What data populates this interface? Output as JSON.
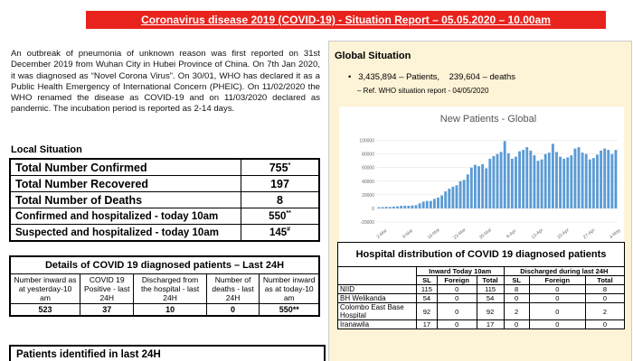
{
  "header": {
    "title": "Coronavirus disease 2019 (COVID-19) - Situation Report – 05.05.2020 – 10.00am"
  },
  "intro": "An outbreak of pneumonia of unknown reason was first reported on 31st December 2019 from Wuhan City in Hubei Province of China. On 7th Jan 2020, it was diagnosed as “Novel Corona Virus”. On 30/01, WHO has declared it as a Public Health Emergency of International Concern (PHEIC). On 11/02/2020 the WHO renamed the disease as COVID-19 and on 11/03/2020 declared as pandemic. The incubation period is reported as 2-14 days.",
  "local": {
    "heading": "Local Situation",
    "rows": [
      {
        "label": "Total Number Confirmed",
        "value": 755,
        "note": "*"
      },
      {
        "label": "Total Number Recovered",
        "value": 197
      },
      {
        "label": "Total Number of Deaths",
        "value": 8
      },
      {
        "label": "Confirmed and hospitalized - today 10am",
        "value": 550,
        "note": "**"
      },
      {
        "label": "Suspected and hospitalized - today 10am",
        "value": 145,
        "note": "#"
      }
    ]
  },
  "details": {
    "title": "Details of COVID 19 diagnosed patients – Last 24H",
    "headers": [
      "Number inward as at yesterday-10 am",
      "COVID 19 Positive - last 24H",
      "Discharged from the hospital - last 24H",
      "Number of deaths - last 24H",
      "Number inward as at today-10 am"
    ],
    "values": [
      523,
      37,
      10,
      0,
      550
    ],
    "last_note": "**"
  },
  "patients_heading": "Patients identified in last 24H",
  "global": {
    "heading": "Global Situation",
    "summary": "3,435,894 – Patients,    239,604 – deaths",
    "ref": "– Ref. WHO situation report - 04/05/2020"
  },
  "chart": {
    "type": "bar",
    "title": "New Patients - Global",
    "color": "#5b9bd5",
    "categories": [
      null,
      "2-Mar",
      null,
      null,
      null,
      null,
      null,
      null,
      "9-Mar",
      null,
      null,
      null,
      null,
      null,
      null,
      "16-Mar",
      null,
      null,
      null,
      null,
      null,
      null,
      "23-Mar",
      null,
      null,
      null,
      null,
      null,
      null,
      "30-Mar",
      null,
      null,
      null,
      null,
      null,
      null,
      "6-Apr",
      null,
      null,
      null,
      null,
      null,
      null,
      "13-Apr",
      null,
      null,
      null,
      null,
      null,
      null,
      "20-Apr",
      null,
      null,
      null,
      null,
      null,
      null,
      "27-Apr",
      null,
      null,
      null,
      null,
      null,
      null,
      "4-May"
    ],
    "values": [
      1800,
      1900,
      2300,
      2200,
      2700,
      3000,
      3700,
      4000,
      3900,
      4400,
      4700,
      7500,
      10000,
      11000,
      11000,
      14000,
      16000,
      19000,
      25000,
      29000,
      32000,
      34000,
      40000,
      42000,
      50000,
      60000,
      64000,
      62000,
      65000,
      59000,
      73000,
      77000,
      80000,
      83000,
      99000,
      81000,
      73000,
      76000,
      84000,
      86000,
      90000,
      85000,
      78000,
      70000,
      72000,
      80000,
      82000,
      95000,
      83000,
      76000,
      73000,
      75000,
      78000,
      88000,
      90000,
      82000,
      80000,
      72000,
      74000,
      79000,
      85000,
      88000,
      86000,
      80000,
      86000
    ],
    "ylim": [
      -20000,
      110000
    ],
    "yticks": [
      -20000,
      0,
      20000,
      40000,
      60000,
      80000,
      100000
    ],
    "grid": true
  },
  "hospital": {
    "title": "Hospital distribution of COVID 19 diagnosed patients",
    "groups": [
      "Inward Today 10am",
      "Discharged during last 24H"
    ],
    "subheaders": [
      "SL",
      "Foreign",
      "Total",
      "SL",
      "Foreign",
      "Total"
    ],
    "rows": [
      {
        "name": "NIID",
        "values": [
          115,
          0,
          115,
          8,
          0,
          8
        ]
      },
      {
        "name": "BH Welikanda",
        "values": [
          54,
          0,
          54,
          0,
          0,
          0
        ]
      },
      {
        "name": "Colombo East Base Hospital",
        "values": [
          92,
          0,
          92,
          2,
          0,
          2
        ]
      },
      {
        "name": "Iranawila",
        "values": [
          17,
          0,
          17,
          0,
          0,
          0
        ]
      }
    ]
  }
}
